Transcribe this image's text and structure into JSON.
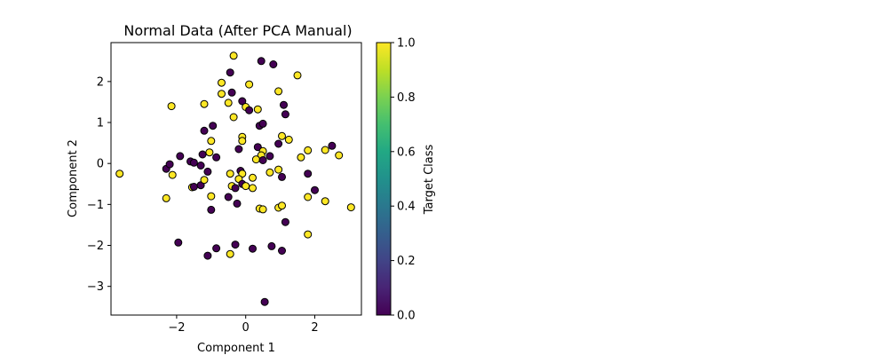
{
  "chart_data": {
    "type": "scatter",
    "title": "Normal Data (After PCA Manual)",
    "xlabel": "Component 1",
    "ylabel": "Component 2",
    "xlim": [
      -3.9,
      3.35
    ],
    "ylim": [
      -3.7,
      2.95
    ],
    "xticks": [
      -2,
      0,
      2
    ],
    "xtick_labels": [
      "−2",
      "0",
      "2"
    ],
    "yticks": [
      -3,
      -2,
      -1,
      0,
      1,
      2
    ],
    "ytick_labels": [
      "−3",
      "−2",
      "−1",
      "0",
      "1",
      "2"
    ],
    "grid": false,
    "colormap": "viridis",
    "colorbar": {
      "label": "Target Class",
      "range": [
        0,
        1
      ],
      "ticks": [
        0.0,
        0.2,
        0.4,
        0.6,
        0.8,
        1.0
      ],
      "tick_labels": [
        "0.0",
        "0.2",
        "0.4",
        "0.6",
        "0.8",
        "1.0"
      ]
    },
    "class_colors": {
      "0": "#440154",
      "1": "#fde725"
    },
    "marker_edge_color": "#000000",
    "points": [
      {
        "x": -3.65,
        "y": -0.25,
        "c": 1
      },
      {
        "x": -2.3,
        "y": -0.85,
        "c": 1
      },
      {
        "x": -2.15,
        "y": 1.4,
        "c": 1
      },
      {
        "x": -2.12,
        "y": -0.28,
        "c": 1
      },
      {
        "x": -2.3,
        "y": -0.13,
        "c": 0
      },
      {
        "x": -2.2,
        "y": -0.02,
        "c": 0
      },
      {
        "x": -1.9,
        "y": 0.18,
        "c": 0
      },
      {
        "x": -1.6,
        "y": 0.05,
        "c": 0
      },
      {
        "x": -1.5,
        "y": 0.02,
        "c": 0
      },
      {
        "x": -1.3,
        "y": -0.05,
        "c": 0
      },
      {
        "x": -1.25,
        "y": 0.22,
        "c": 0
      },
      {
        "x": -1.1,
        "y": -0.2,
        "c": 0
      },
      {
        "x": -1.05,
        "y": 0.27,
        "c": 1
      },
      {
        "x": -0.85,
        "y": 0.15,
        "c": 0
      },
      {
        "x": -1.2,
        "y": 0.8,
        "c": 0
      },
      {
        "x": -1.2,
        "y": 1.45,
        "c": 1
      },
      {
        "x": -0.95,
        "y": 0.92,
        "c": 0
      },
      {
        "x": -1.0,
        "y": 0.55,
        "c": 1
      },
      {
        "x": -1.55,
        "y": -0.58,
        "c": 1
      },
      {
        "x": -1.5,
        "y": -0.57,
        "c": 0
      },
      {
        "x": -1.3,
        "y": -0.53,
        "c": 0
      },
      {
        "x": -1.2,
        "y": -0.4,
        "c": 1
      },
      {
        "x": -1.0,
        "y": -0.8,
        "c": 1
      },
      {
        "x": -1.0,
        "y": -1.13,
        "c": 0
      },
      {
        "x": -1.95,
        "y": -1.93,
        "c": 0
      },
      {
        "x": -1.1,
        "y": -2.25,
        "c": 0
      },
      {
        "x": -0.85,
        "y": -2.07,
        "c": 0
      },
      {
        "x": -0.45,
        "y": -2.21,
        "c": 1
      },
      {
        "x": -0.3,
        "y": -1.98,
        "c": 0
      },
      {
        "x": 0.2,
        "y": -2.08,
        "c": 0
      },
      {
        "x": 0.75,
        "y": -2.02,
        "c": 0
      },
      {
        "x": 1.05,
        "y": -2.13,
        "c": 0
      },
      {
        "x": 0.55,
        "y": -3.38,
        "c": 0
      },
      {
        "x": -0.45,
        "y": 2.22,
        "c": 0
      },
      {
        "x": -0.35,
        "y": 2.63,
        "c": 1
      },
      {
        "x": 0.45,
        "y": 2.5,
        "c": 0
      },
      {
        "x": 0.8,
        "y": 2.42,
        "c": 0
      },
      {
        "x": 1.5,
        "y": 2.15,
        "c": 1
      },
      {
        "x": -0.7,
        "y": 1.97,
        "c": 1
      },
      {
        "x": -0.7,
        "y": 1.7,
        "c": 1
      },
      {
        "x": -0.4,
        "y": 1.73,
        "c": 0
      },
      {
        "x": 0.1,
        "y": 1.93,
        "c": 1
      },
      {
        "x": 0.95,
        "y": 1.76,
        "c": 1
      },
      {
        "x": -0.5,
        "y": 1.48,
        "c": 1
      },
      {
        "x": -0.1,
        "y": 1.52,
        "c": 0
      },
      {
        "x": 0.0,
        "y": 1.38,
        "c": 1
      },
      {
        "x": 0.1,
        "y": 1.3,
        "c": 0
      },
      {
        "x": 0.35,
        "y": 1.32,
        "c": 1
      },
      {
        "x": 1.1,
        "y": 1.43,
        "c": 0
      },
      {
        "x": 1.15,
        "y": 1.2,
        "c": 0
      },
      {
        "x": -0.35,
        "y": 1.13,
        "c": 1
      },
      {
        "x": 0.4,
        "y": 0.92,
        "c": 0
      },
      {
        "x": 0.5,
        "y": 0.97,
        "c": 0
      },
      {
        "x": -0.1,
        "y": 0.65,
        "c": 1
      },
      {
        "x": -0.1,
        "y": 0.55,
        "c": 1
      },
      {
        "x": 0.35,
        "y": 0.4,
        "c": 0
      },
      {
        "x": -0.2,
        "y": 0.35,
        "c": 0
      },
      {
        "x": 0.5,
        "y": 0.3,
        "c": 1
      },
      {
        "x": 0.45,
        "y": 0.2,
        "c": 1
      },
      {
        "x": 0.3,
        "y": 0.1,
        "c": 1
      },
      {
        "x": 0.5,
        "y": 0.08,
        "c": 0
      },
      {
        "x": 0.7,
        "y": 0.18,
        "c": 0
      },
      {
        "x": 0.95,
        "y": 0.48,
        "c": 0
      },
      {
        "x": 1.05,
        "y": 0.67,
        "c": 1
      },
      {
        "x": 1.25,
        "y": 0.58,
        "c": 1
      },
      {
        "x": 1.6,
        "y": 0.15,
        "c": 1
      },
      {
        "x": 1.8,
        "y": 0.32,
        "c": 1
      },
      {
        "x": 2.3,
        "y": 0.33,
        "c": 1
      },
      {
        "x": 2.5,
        "y": 0.43,
        "c": 0
      },
      {
        "x": 2.7,
        "y": 0.2,
        "c": 1
      },
      {
        "x": 1.8,
        "y": -0.25,
        "c": 0
      },
      {
        "x": 0.95,
        "y": -0.15,
        "c": 1
      },
      {
        "x": 1.05,
        "y": -0.33,
        "c": 0
      },
      {
        "x": 0.7,
        "y": -0.22,
        "c": 1
      },
      {
        "x": -0.45,
        "y": -0.25,
        "c": 1
      },
      {
        "x": -0.15,
        "y": -0.18,
        "c": 0
      },
      {
        "x": -0.1,
        "y": -0.25,
        "c": 1
      },
      {
        "x": -0.2,
        "y": -0.38,
        "c": 1
      },
      {
        "x": 0.2,
        "y": -0.35,
        "c": 1
      },
      {
        "x": -0.4,
        "y": -0.55,
        "c": 1
      },
      {
        "x": -0.3,
        "y": -0.6,
        "c": 0
      },
      {
        "x": -0.1,
        "y": -0.5,
        "c": 0
      },
      {
        "x": 0.0,
        "y": -0.55,
        "c": 1
      },
      {
        "x": 0.2,
        "y": -0.6,
        "c": 1
      },
      {
        "x": -0.5,
        "y": -0.82,
        "c": 0
      },
      {
        "x": -0.25,
        "y": -0.98,
        "c": 0
      },
      {
        "x": 2.0,
        "y": -0.65,
        "c": 0
      },
      {
        "x": 1.8,
        "y": -0.82,
        "c": 1
      },
      {
        "x": 2.3,
        "y": -0.92,
        "c": 1
      },
      {
        "x": 0.4,
        "y": -1.1,
        "c": 1
      },
      {
        "x": 0.5,
        "y": -1.12,
        "c": 1
      },
      {
        "x": 0.95,
        "y": -1.08,
        "c": 1
      },
      {
        "x": 1.05,
        "y": -1.03,
        "c": 1
      },
      {
        "x": 1.15,
        "y": -1.43,
        "c": 0
      },
      {
        "x": 1.8,
        "y": -1.73,
        "c": 1
      },
      {
        "x": 3.05,
        "y": -1.07,
        "c": 1
      }
    ]
  }
}
